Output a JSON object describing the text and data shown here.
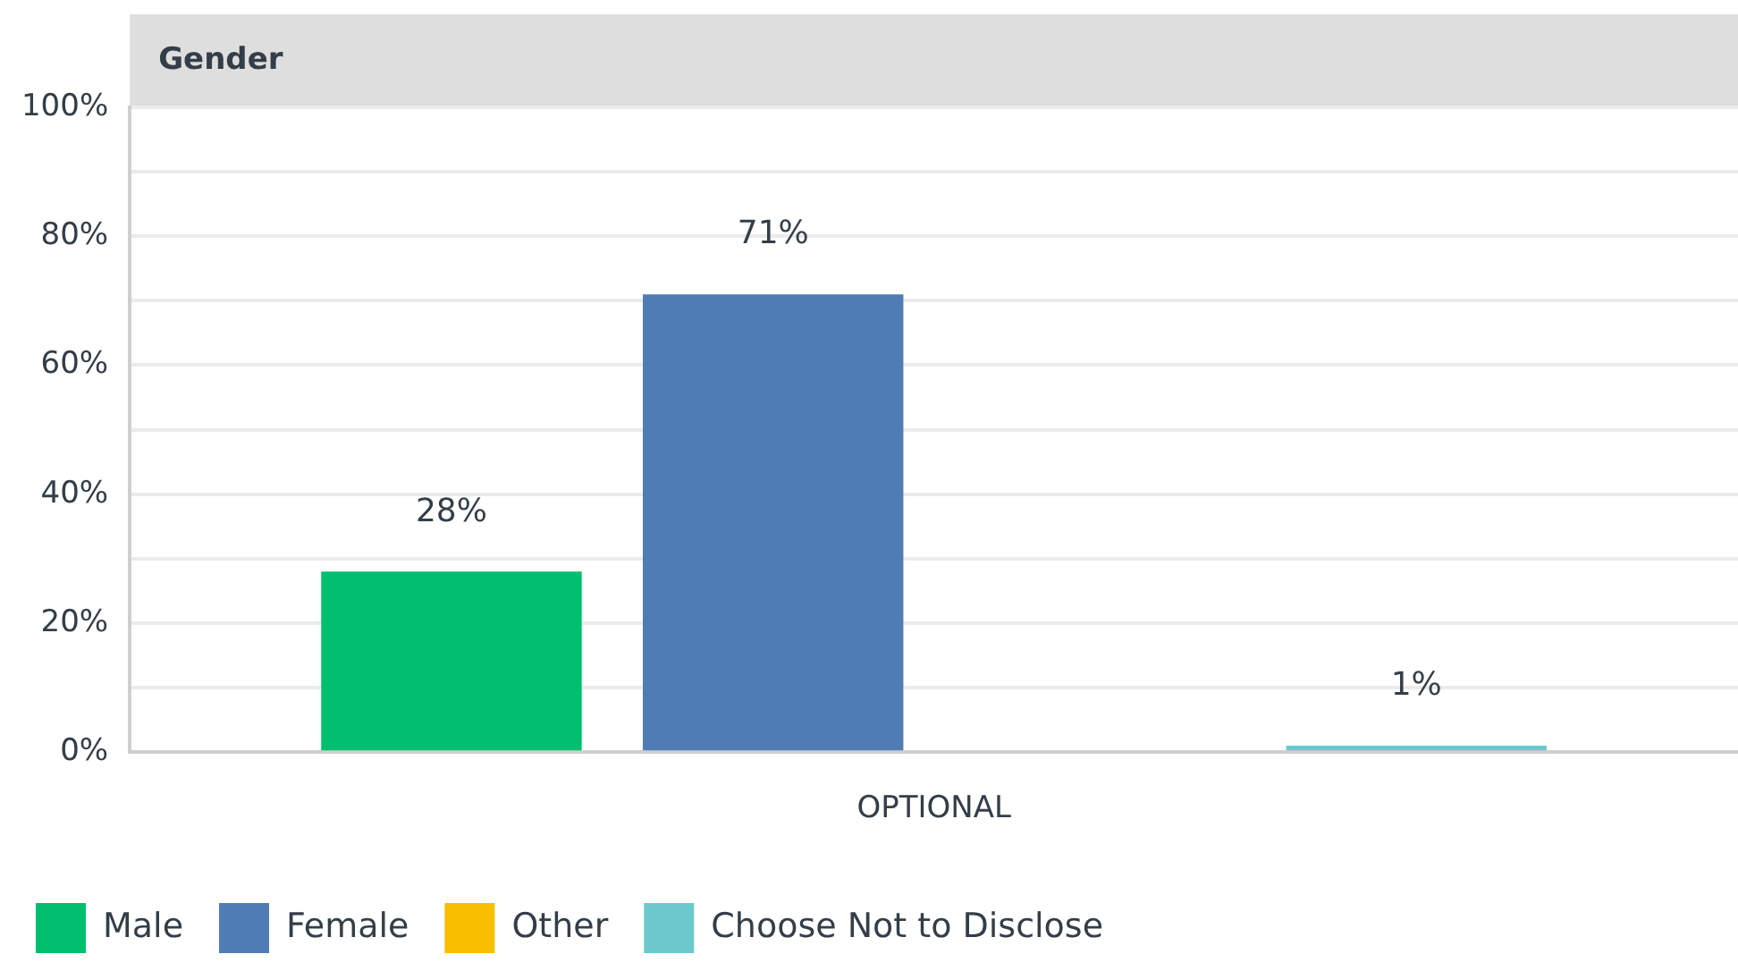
{
  "chart_data": {
    "type": "bar",
    "title": "Gender",
    "categories": [
      "OPTIONAL"
    ],
    "series": [
      {
        "name": "Male",
        "color": "#00bf6f",
        "values": [
          28
        ],
        "value_labels": [
          "28%"
        ]
      },
      {
        "name": "Female",
        "color": "#507cb6",
        "values": [
          71
        ],
        "value_labels": [
          "71%"
        ]
      },
      {
        "name": "Other",
        "color": "#f9be00",
        "values": [
          0
        ],
        "value_labels": [
          null
        ]
      },
      {
        "name": "Choose Not to Disclose",
        "color": "#6bc8cd",
        "values": [
          1
        ],
        "value_labels": [
          "1%"
        ]
      }
    ],
    "ylim": [
      0,
      100
    ],
    "yticks": [
      {
        "value": 0,
        "label": "0%"
      },
      {
        "value": 10,
        "label": null
      },
      {
        "value": 20,
        "label": "20%"
      },
      {
        "value": 30,
        "label": null
      },
      {
        "value": 40,
        "label": "40%"
      },
      {
        "value": 50,
        "label": null
      },
      {
        "value": 60,
        "label": "60%"
      },
      {
        "value": 70,
        "label": null
      },
      {
        "value": 80,
        "label": "80%"
      },
      {
        "value": 90,
        "label": null
      },
      {
        "value": 100,
        "label": "100%"
      }
    ],
    "grid": "y",
    "legend": "bottom left"
  }
}
